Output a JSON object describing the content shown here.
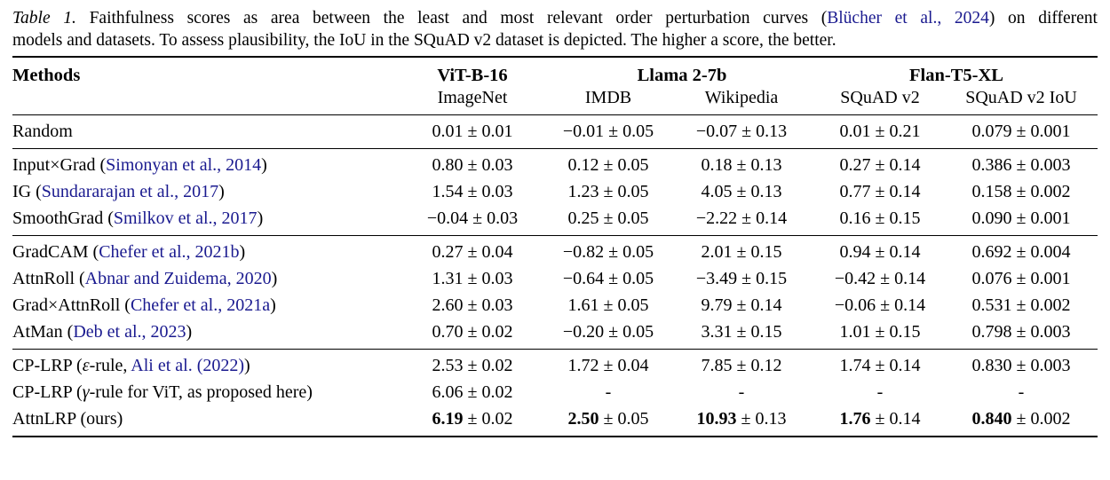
{
  "colors": {
    "text": "#000000",
    "citation_link": "#1a1a8f",
    "rule": "#000000",
    "background": "#ffffff"
  },
  "caption": {
    "lines": [
      {
        "parts": [
          {
            "type": "label",
            "text": "Table 1."
          },
          {
            "type": "text",
            "text": " Faithfulness scores as area between the least and most relevant order perturbation curves ("
          },
          {
            "type": "link",
            "text": "Blücher et al., 2024"
          },
          {
            "type": "text",
            "text": ") on different"
          }
        ]
      },
      {
        "parts": [
          {
            "type": "text",
            "text": "models and datasets. To assess plausibility, the IoU in the SQuAD v2 dataset is depicted. The higher a score, the better."
          }
        ]
      }
    ]
  },
  "table": {
    "header": {
      "methods": "Methods",
      "model_groups": [
        {
          "label": "ViT-B-16",
          "span": 1
        },
        {
          "label": "Llama 2-7b",
          "span": 2
        },
        {
          "label": "Flan-T5-XL",
          "span": 2
        }
      ],
      "datasets": [
        "ImageNet",
        "IMDB",
        "Wikipedia",
        "SQuAD v2",
        "SQuAD v2 IoU"
      ]
    },
    "groups": [
      {
        "rows": [
          {
            "method": [
              {
                "type": "text",
                "text": "Random"
              }
            ],
            "scores": [
              {
                "text": "0.01 ± 0.01"
              },
              {
                "text": "−0.01 ± 0.05"
              },
              {
                "text": "−0.07 ± 0.13"
              },
              {
                "text": "0.01 ± 0.21"
              },
              {
                "text": "0.079 ± 0.001"
              }
            ]
          }
        ]
      },
      {
        "rows": [
          {
            "method": [
              {
                "type": "text",
                "text": "Input×Grad ("
              },
              {
                "type": "link",
                "text": "Simonyan et al., 2014"
              },
              {
                "type": "text",
                "text": ")"
              }
            ],
            "scores": [
              {
                "text": "0.80 ± 0.03"
              },
              {
                "text": "0.12 ± 0.05"
              },
              {
                "text": "0.18 ± 0.13"
              },
              {
                "text": "0.27 ± 0.14"
              },
              {
                "text": "0.386 ± 0.003"
              }
            ]
          },
          {
            "method": [
              {
                "type": "text",
                "text": "IG ("
              },
              {
                "type": "link",
                "text": "Sundararajan et al., 2017"
              },
              {
                "type": "text",
                "text": ")"
              }
            ],
            "scores": [
              {
                "text": "1.54 ± 0.03"
              },
              {
                "text": "1.23 ± 0.05"
              },
              {
                "text": "4.05 ± 0.13"
              },
              {
                "text": "0.77 ± 0.14"
              },
              {
                "text": "0.158 ± 0.002"
              }
            ]
          },
          {
            "method": [
              {
                "type": "text",
                "text": "SmoothGrad ("
              },
              {
                "type": "link",
                "text": "Smilkov et al., 2017"
              },
              {
                "type": "text",
                "text": ")"
              }
            ],
            "scores": [
              {
                "text": "−0.04 ± 0.03"
              },
              {
                "text": "0.25 ± 0.05"
              },
              {
                "text": "−2.22 ± 0.14"
              },
              {
                "text": "0.16 ± 0.15"
              },
              {
                "text": "0.090 ± 0.001"
              }
            ]
          }
        ]
      },
      {
        "rows": [
          {
            "method": [
              {
                "type": "text",
                "text": "GradCAM ("
              },
              {
                "type": "link",
                "text": "Chefer et al., 2021b"
              },
              {
                "type": "text",
                "text": ")"
              }
            ],
            "scores": [
              {
                "text": "0.27 ± 0.04"
              },
              {
                "text": "−0.82 ± 0.05"
              },
              {
                "text": "2.01 ± 0.15"
              },
              {
                "text": "0.94 ± 0.14"
              },
              {
                "text": "0.692 ± 0.004"
              }
            ]
          },
          {
            "method": [
              {
                "type": "text",
                "text": "AttnRoll ("
              },
              {
                "type": "link",
                "text": "Abnar and Zuidema, 2020"
              },
              {
                "type": "text",
                "text": ")"
              }
            ],
            "scores": [
              {
                "text": "1.31 ± 0.03"
              },
              {
                "text": "−0.64 ± 0.05"
              },
              {
                "text": "−3.49 ± 0.15"
              },
              {
                "text": "−0.42 ± 0.14"
              },
              {
                "text": "0.076 ± 0.001"
              }
            ]
          },
          {
            "method": [
              {
                "type": "text",
                "text": "Grad×AttnRoll ("
              },
              {
                "type": "link",
                "text": "Chefer et al., 2021a"
              },
              {
                "type": "text",
                "text": ")"
              }
            ],
            "scores": [
              {
                "text": "2.60 ± 0.03"
              },
              {
                "text": "1.61 ± 0.05"
              },
              {
                "text": "9.79 ± 0.14"
              },
              {
                "text": "−0.06 ± 0.14"
              },
              {
                "text": "0.531 ± 0.002"
              }
            ]
          },
          {
            "method": [
              {
                "type": "text",
                "text": "AtMan ("
              },
              {
                "type": "link",
                "text": "Deb et al., 2023"
              },
              {
                "type": "text",
                "text": ")"
              }
            ],
            "scores": [
              {
                "text": "0.70 ± 0.02"
              },
              {
                "text": "−0.20 ± 0.05"
              },
              {
                "text": "3.31 ± 0.15"
              },
              {
                "text": "1.01 ± 0.15"
              },
              {
                "text": "0.798 ± 0.003"
              }
            ]
          }
        ]
      },
      {
        "rows": [
          {
            "method": [
              {
                "type": "text",
                "text": "CP-LRP ("
              },
              {
                "type": "italic",
                "text": "ε"
              },
              {
                "type": "text",
                "text": "-rule, "
              },
              {
                "type": "link",
                "text": "Ali et al. (2022)"
              },
              {
                "type": "text",
                "text": ")"
              }
            ],
            "scores": [
              {
                "text": "2.53 ± 0.02"
              },
              {
                "text": "1.72 ± 0.04"
              },
              {
                "text": "7.85 ± 0.12"
              },
              {
                "text": "1.74 ± 0.14"
              },
              {
                "text": "0.830 ± 0.003"
              }
            ]
          },
          {
            "method": [
              {
                "type": "text",
                "text": "CP-LRP ("
              },
              {
                "type": "italic",
                "text": "γ"
              },
              {
                "type": "text",
                "text": "-rule for ViT, as proposed here)"
              }
            ],
            "scores": [
              {
                "text": "6.06 ± 0.02"
              },
              {
                "text": "-"
              },
              {
                "text": "-"
              },
              {
                "text": "-"
              },
              {
                "text": "-"
              }
            ]
          },
          {
            "method": [
              {
                "type": "text",
                "text": "AttnLRP (ours)"
              }
            ],
            "scores": [
              {
                "bold": "6.19",
                "text": " ± 0.02"
              },
              {
                "bold": "2.50",
                "text": " ± 0.05"
              },
              {
                "bold": "10.93",
                "text": " ± 0.13"
              },
              {
                "bold": "1.76",
                "text": " ± 0.14"
              },
              {
                "bold": "0.840",
                "text": " ± 0.002"
              }
            ]
          }
        ]
      }
    ]
  }
}
